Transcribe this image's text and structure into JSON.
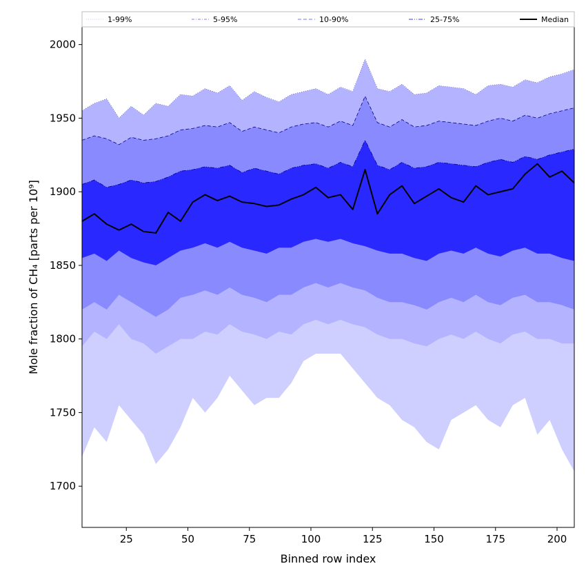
{
  "chart_data": {
    "type": "area",
    "xlabel": "Binned row index",
    "ylabel": "Mole fraction of CH₄ [parts per 10⁹]",
    "xlim": [
      7,
      207
    ],
    "ylim": [
      1672,
      2012
    ],
    "x_ticks": [
      25,
      50,
      75,
      100,
      125,
      150,
      175,
      200
    ],
    "y_ticks": [
      1700,
      1750,
      1800,
      1850,
      1900,
      1950,
      2000
    ],
    "x": [
      7,
      12,
      17,
      22,
      27,
      32,
      37,
      42,
      47,
      52,
      57,
      62,
      67,
      72,
      77,
      82,
      87,
      92,
      97,
      102,
      107,
      112,
      117,
      122,
      127,
      132,
      137,
      142,
      147,
      152,
      157,
      162,
      167,
      172,
      177,
      182,
      187,
      192,
      197,
      202,
      207
    ],
    "bands": [
      {
        "name": "1-99%",
        "style": "dotted",
        "color": "#ceceff",
        "lower": [
          1720,
          1740,
          1730,
          1755,
          1745,
          1735,
          1715,
          1725,
          1740,
          1760,
          1750,
          1760,
          1775,
          1765,
          1755,
          1760,
          1760,
          1770,
          1785,
          1790,
          1790,
          1790,
          1780,
          1770,
          1760,
          1755,
          1745,
          1740,
          1730,
          1725,
          1745,
          1750,
          1755,
          1745,
          1740,
          1755,
          1760,
          1735,
          1745,
          1725,
          1710
        ],
        "upper": [
          1955,
          1960,
          1963,
          1950,
          1958,
          1952,
          1960,
          1958,
          1966,
          1965,
          1970,
          1967,
          1972,
          1962,
          1968,
          1964,
          1961,
          1966,
          1968,
          1970,
          1966,
          1971,
          1968,
          1990,
          1970,
          1968,
          1973,
          1966,
          1967,
          1972,
          1971,
          1970,
          1966,
          1972,
          1973,
          1971,
          1976,
          1974,
          1978,
          1980,
          1983
        ]
      },
      {
        "name": "5-95%",
        "style": "dash-dot",
        "color": "#b3b3ff",
        "lower": [
          1795,
          1805,
          1800,
          1810,
          1800,
          1797,
          1790,
          1795,
          1800,
          1800,
          1805,
          1803,
          1810,
          1805,
          1803,
          1800,
          1805,
          1803,
          1810,
          1813,
          1810,
          1813,
          1810,
          1808,
          1803,
          1800,
          1800,
          1797,
          1795,
          1800,
          1803,
          1800,
          1805,
          1800,
          1797,
          1803,
          1805,
          1800,
          1800,
          1797,
          1797
        ]
      },
      {
        "name": "10-90%",
        "style": "dashed",
        "color": "#8a8aff",
        "lower": [
          1820,
          1825,
          1820,
          1830,
          1825,
          1820,
          1815,
          1820,
          1828,
          1830,
          1833,
          1830,
          1835,
          1830,
          1828,
          1825,
          1830,
          1830,
          1835,
          1838,
          1835,
          1838,
          1835,
          1833,
          1828,
          1825,
          1825,
          1823,
          1820,
          1825,
          1828,
          1825,
          1830,
          1825,
          1823,
          1828,
          1830,
          1825,
          1825,
          1823,
          1820
        ],
        "upper": [
          1935,
          1938,
          1936,
          1932,
          1937,
          1935,
          1936,
          1938,
          1942,
          1943,
          1945,
          1944,
          1947,
          1941,
          1944,
          1942,
          1940,
          1944,
          1946,
          1947,
          1944,
          1948,
          1945,
          1965,
          1947,
          1944,
          1949,
          1944,
          1945,
          1948,
          1947,
          1946,
          1945,
          1948,
          1950,
          1948,
          1952,
          1950,
          1953,
          1955,
          1957
        ]
      },
      {
        "name": "25-75%",
        "style": "dash-dot-dot",
        "color": "#2929ff",
        "lower": [
          1855,
          1858,
          1853,
          1860,
          1855,
          1852,
          1850,
          1855,
          1860,
          1862,
          1865,
          1862,
          1866,
          1862,
          1860,
          1858,
          1862,
          1862,
          1866,
          1868,
          1866,
          1868,
          1865,
          1863,
          1860,
          1858,
          1858,
          1855,
          1853,
          1858,
          1860,
          1858,
          1862,
          1858,
          1856,
          1860,
          1862,
          1858,
          1858,
          1855,
          1853
        ],
        "upper": [
          1905,
          1908,
          1903,
          1905,
          1908,
          1906,
          1907,
          1910,
          1914,
          1915,
          1917,
          1916,
          1918,
          1913,
          1916,
          1914,
          1912,
          1916,
          1918,
          1919,
          1916,
          1920,
          1917,
          1935,
          1918,
          1915,
          1920,
          1916,
          1917,
          1920,
          1919,
          1918,
          1917,
          1920,
          1922,
          1920,
          1924,
          1922,
          1925,
          1927,
          1929
        ]
      }
    ],
    "median": {
      "name": "Median",
      "color": "#000000",
      "values": [
        1880,
        1885,
        1878,
        1874,
        1878,
        1873,
        1872,
        1886,
        1880,
        1893,
        1898,
        1894,
        1897,
        1893,
        1892,
        1890,
        1891,
        1895,
        1898,
        1903,
        1896,
        1898,
        1888,
        1915,
        1885,
        1898,
        1904,
        1892,
        1897,
        1902,
        1896,
        1893,
        1904,
        1898,
        1900,
        1902,
        1912,
        1919,
        1910,
        1914,
        1906
      ]
    },
    "legend": {
      "position": "top",
      "entries": [
        "1-99%",
        "5-95%",
        "10-90%",
        "25-75%",
        "Median"
      ]
    },
    "grid": false
  }
}
